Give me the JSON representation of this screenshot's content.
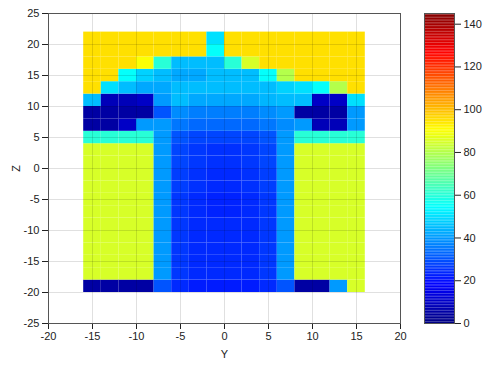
{
  "chart_data": {
    "type": "heatmap",
    "x_label": "Y",
    "y_label": "Z",
    "xlim": [
      -20,
      20
    ],
    "xticks": [
      -20,
      -15,
      -10,
      -5,
      0,
      5,
      10,
      15,
      20
    ],
    "ylim": [
      -25,
      25
    ],
    "yticks": [
      -25,
      -20,
      -15,
      -10,
      -5,
      0,
      5,
      10,
      15,
      20,
      25
    ],
    "grid": true,
    "color": "jet",
    "heatmap": {
      "x": [
        -15,
        -13,
        -11,
        -9,
        -7,
        -5,
        -3,
        -1,
        1,
        3,
        5,
        7,
        9,
        11,
        13,
        15
      ],
      "y": [
        -19,
        -17,
        -15,
        -13,
        -11,
        -9,
        -7,
        -5,
        -3,
        -1,
        1,
        3,
        5,
        7,
        9,
        11,
        13,
        15,
        17,
        19,
        21
      ],
      "values": [
        [
          5,
          5,
          5,
          5,
          30,
          24,
          22,
          22,
          22,
          22,
          24,
          30,
          5,
          5,
          40,
          85
        ],
        [
          85,
          85,
          85,
          85,
          40,
          26,
          24,
          24,
          24,
          24,
          26,
          40,
          85,
          85,
          85,
          85
        ],
        [
          85,
          85,
          85,
          85,
          40,
          26,
          24,
          24,
          24,
          24,
          26,
          40,
          85,
          85,
          85,
          85
        ],
        [
          85,
          85,
          85,
          85,
          40,
          26,
          24,
          24,
          24,
          24,
          26,
          40,
          85,
          85,
          85,
          85
        ],
        [
          85,
          85,
          85,
          85,
          40,
          26,
          24,
          24,
          24,
          24,
          26,
          40,
          85,
          85,
          85,
          85
        ],
        [
          85,
          85,
          85,
          85,
          40,
          26,
          24,
          24,
          24,
          24,
          26,
          40,
          85,
          85,
          85,
          85
        ],
        [
          85,
          85,
          85,
          85,
          40,
          26,
          24,
          23,
          23,
          24,
          26,
          40,
          85,
          85,
          85,
          85
        ],
        [
          85,
          85,
          85,
          85,
          40,
          26,
          24,
          23,
          23,
          24,
          26,
          40,
          85,
          85,
          85,
          85
        ],
        [
          85,
          85,
          85,
          85,
          40,
          27,
          25,
          24,
          24,
          25,
          27,
          40,
          85,
          85,
          85,
          85
        ],
        [
          85,
          85,
          85,
          85,
          40,
          27,
          25,
          24,
          24,
          25,
          27,
          40,
          85,
          85,
          85,
          85
        ],
        [
          85,
          85,
          85,
          85,
          40,
          28,
          26,
          25,
          25,
          26,
          28,
          40,
          85,
          85,
          85,
          85
        ],
        [
          85,
          85,
          85,
          85,
          40,
          28,
          26,
          25,
          25,
          26,
          28,
          40,
          85,
          85,
          85,
          85
        ],
        [
          60,
          60,
          60,
          60,
          40,
          30,
          28,
          28,
          28,
          28,
          30,
          40,
          60,
          60,
          60,
          60
        ],
        [
          5,
          5,
          10,
          40,
          40,
          35,
          33,
          33,
          33,
          33,
          35,
          38,
          40,
          8,
          8,
          40
        ],
        [
          5,
          5,
          5,
          5,
          30,
          38,
          36,
          36,
          36,
          36,
          38,
          40,
          5,
          5,
          5,
          40
        ],
        [
          45,
          8,
          8,
          10,
          40,
          45,
          42,
          42,
          42,
          42,
          44,
          45,
          45,
          10,
          10,
          50
        ],
        [
          95,
          50,
          45,
          42,
          42,
          45,
          45,
          45,
          45,
          45,
          45,
          48,
          50,
          55,
          80,
          95
        ],
        [
          95,
          95,
          55,
          48,
          45,
          42,
          42,
          45,
          45,
          45,
          55,
          80,
          95,
          95,
          95,
          95
        ],
        [
          95,
          95,
          95,
          90,
          60,
          45,
          45,
          45,
          60,
          85,
          95,
          95,
          95,
          95,
          95,
          95
        ],
        [
          95,
          95,
          95,
          95,
          95,
          95,
          95,
          55,
          95,
          95,
          95,
          95,
          95,
          95,
          95,
          95
        ],
        [
          95,
          95,
          95,
          95,
          95,
          95,
          95,
          50,
          95,
          95,
          95,
          95,
          95,
          95,
          95,
          95
        ]
      ]
    },
    "colorbar": {
      "lim": [
        0,
        145
      ],
      "ticks": [
        0,
        20,
        40,
        60,
        80,
        100,
        120,
        140
      ]
    }
  }
}
